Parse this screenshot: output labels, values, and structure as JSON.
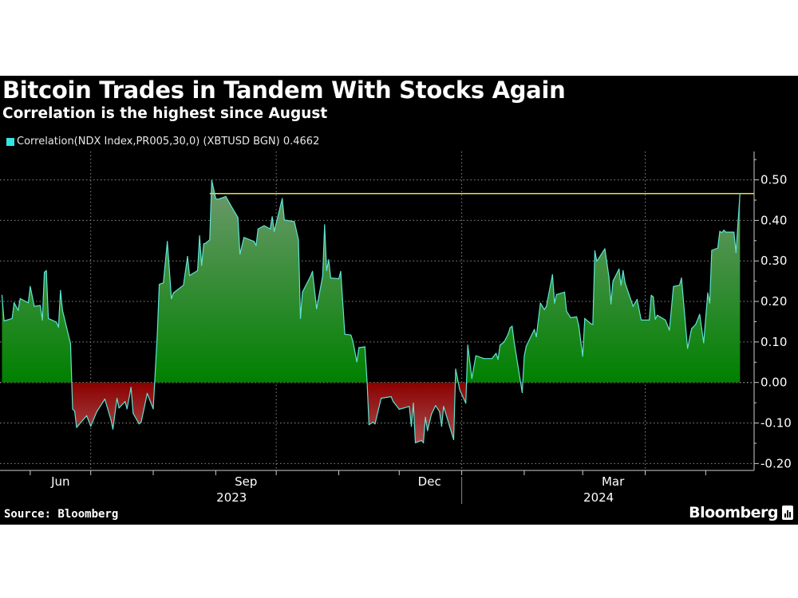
{
  "header": {
    "title": "Bitcoin Trades in Tandem With Stocks Again",
    "subtitle": "Correlation is the highest since August"
  },
  "footer": {
    "source": "Source: Bloomberg",
    "brand": "Bloomberg"
  },
  "colors": {
    "background": "#000000",
    "line": "#5fe3d3",
    "positive_fill": "#008a00",
    "negative_fill": "#8b0000",
    "reference_line": "#e6e04a",
    "legend_swatch": "#33e6e6"
  },
  "chart_data": {
    "type": "area",
    "title": "Bitcoin Trades in Tandem With Stocks Again",
    "subtitle": "Correlation is the highest since August",
    "legend_position": "top-left",
    "grid": true,
    "y_axis_side": "right",
    "ylim": [
      -0.217,
      0.57
    ],
    "xlim": [
      "2023-05-17",
      "2024-05-25"
    ],
    "y_ticks": [
      {
        "value": 0.5,
        "label": "0.50"
      },
      {
        "value": 0.4,
        "label": "0.40"
      },
      {
        "value": 0.3,
        "label": "0.30"
      },
      {
        "value": 0.2,
        "label": "0.20"
      },
      {
        "value": 0.1,
        "label": "0.10"
      },
      {
        "value": 0.0,
        "label": "0.00"
      },
      {
        "value": -0.1,
        "label": "-0.10"
      },
      {
        "value": -0.2,
        "label": "-0.20"
      }
    ],
    "x_tick_labels": [
      {
        "label": "Jun",
        "date": "2023-06-16"
      },
      {
        "label": "Sep",
        "date": "2023-09-16"
      },
      {
        "label": "Dec",
        "date": "2023-12-16"
      },
      {
        "label": "Mar",
        "date": "2024-03-16"
      }
    ],
    "year_labels": [
      {
        "label": "2023",
        "date": "2023-09-16"
      },
      {
        "label": "2024",
        "date": "2024-03-16"
      }
    ],
    "year_separator": "2024-01-01",
    "vertical_gridlines": [
      "2023-07-01",
      "2023-10-01",
      "2024-01-01",
      "2024-04-01"
    ],
    "reference_line": {
      "value": 0.4662,
      "from": "2023-08-29"
    },
    "series": [
      {
        "name": "Correlation(NDX Index,PR005,30,0) (XBTUSD BGN) 0.4662",
        "points": [
          [
            "2023-05-18",
            0.215
          ],
          [
            "2023-05-19",
            0.152
          ],
          [
            "2023-05-23",
            0.158
          ],
          [
            "2023-05-24",
            0.197
          ],
          [
            "2023-05-26",
            0.178
          ],
          [
            "2023-05-27",
            0.207
          ],
          [
            "2023-05-31",
            0.197
          ],
          [
            "2023-06-01",
            0.237
          ],
          [
            "2023-06-03",
            0.188
          ],
          [
            "2023-06-06",
            0.19
          ],
          [
            "2023-06-07",
            0.154
          ],
          [
            "2023-06-08",
            0.272
          ],
          [
            "2023-06-09",
            0.276
          ],
          [
            "2023-06-10",
            0.158
          ],
          [
            "2023-06-14",
            0.149
          ],
          [
            "2023-06-15",
            0.137
          ],
          [
            "2023-06-16",
            0.227
          ],
          [
            "2023-06-17",
            0.178
          ],
          [
            "2023-06-21",
            0.096
          ],
          [
            "2023-06-22",
            -0.066
          ],
          [
            "2023-06-23",
            -0.07
          ],
          [
            "2023-06-24",
            -0.111
          ],
          [
            "2023-06-29",
            -0.082
          ],
          [
            "2023-07-01",
            -0.108
          ],
          [
            "2023-07-04",
            -0.072
          ],
          [
            "2023-07-08",
            -0.041
          ],
          [
            "2023-07-11",
            -0.092
          ],
          [
            "2023-07-12",
            -0.115
          ],
          [
            "2023-07-14",
            -0.039
          ],
          [
            "2023-07-15",
            -0.063
          ],
          [
            "2023-07-18",
            -0.047
          ],
          [
            "2023-07-19",
            -0.065
          ],
          [
            "2023-07-21",
            -0.012
          ],
          [
            "2023-07-22",
            -0.076
          ],
          [
            "2023-07-25",
            -0.102
          ],
          [
            "2023-07-26",
            -0.098
          ],
          [
            "2023-07-29",
            -0.027
          ],
          [
            "2023-08-01",
            -0.065
          ],
          [
            "2023-08-03",
            0.119
          ],
          [
            "2023-08-04",
            0.242
          ],
          [
            "2023-08-06",
            0.246
          ],
          [
            "2023-08-08",
            0.348
          ],
          [
            "2023-08-10",
            0.207
          ],
          [
            "2023-08-11",
            0.221
          ],
          [
            "2023-08-16",
            0.24
          ],
          [
            "2023-08-18",
            0.311
          ],
          [
            "2023-08-19",
            0.264
          ],
          [
            "2023-08-23",
            0.276
          ],
          [
            "2023-08-24",
            0.362
          ],
          [
            "2023-08-25",
            0.289
          ],
          [
            "2023-08-26",
            0.342
          ],
          [
            "2023-08-27",
            0.344
          ],
          [
            "2023-08-29",
            0.352
          ],
          [
            "2023-08-30",
            0.499
          ],
          [
            "2023-09-01",
            0.454
          ],
          [
            "2023-09-02",
            0.452
          ],
          [
            "2023-09-06",
            0.459
          ],
          [
            "2023-09-09",
            0.432
          ],
          [
            "2023-09-12",
            0.407
          ],
          [
            "2023-09-13",
            0.317
          ],
          [
            "2023-09-15",
            0.358
          ],
          [
            "2023-09-20",
            0.348
          ],
          [
            "2023-09-21",
            0.338
          ],
          [
            "2023-09-22",
            0.379
          ],
          [
            "2023-09-25",
            0.387
          ],
          [
            "2023-09-28",
            0.379
          ],
          [
            "2023-09-29",
            0.409
          ],
          [
            "2023-09-30",
            0.373
          ],
          [
            "2023-10-04",
            0.454
          ],
          [
            "2023-10-05",
            0.401
          ],
          [
            "2023-10-10",
            0.397
          ],
          [
            "2023-10-12",
            0.352
          ],
          [
            "2023-10-13",
            0.158
          ],
          [
            "2023-10-14",
            0.223
          ],
          [
            "2023-10-18",
            0.262
          ],
          [
            "2023-10-19",
            0.274
          ],
          [
            "2023-10-21",
            0.182
          ],
          [
            "2023-10-24",
            0.262
          ],
          [
            "2023-10-25",
            0.389
          ],
          [
            "2023-10-26",
            0.276
          ],
          [
            "2023-10-27",
            0.303
          ],
          [
            "2023-10-28",
            0.258
          ],
          [
            "2023-11-01",
            0.256
          ],
          [
            "2023-11-02",
            0.274
          ],
          [
            "2023-11-04",
            0.119
          ],
          [
            "2023-11-07",
            0.117
          ],
          [
            "2023-11-08",
            0.102
          ],
          [
            "2023-11-10",
            0.051
          ],
          [
            "2023-11-11",
            0.086
          ],
          [
            "2023-11-14",
            0.088
          ],
          [
            "2023-11-15",
            0.006
          ],
          [
            "2023-11-16",
            -0.104
          ],
          [
            "2023-11-18",
            -0.098
          ],
          [
            "2023-11-19",
            -0.102
          ],
          [
            "2023-11-22",
            -0.039
          ],
          [
            "2023-11-27",
            -0.035
          ],
          [
            "2023-11-28",
            -0.047
          ],
          [
            "2023-12-01",
            -0.066
          ],
          [
            "2023-12-06",
            -0.059
          ],
          [
            "2023-12-07",
            -0.108
          ],
          [
            "2023-12-08",
            -0.051
          ],
          [
            "2023-12-09",
            -0.149
          ],
          [
            "2023-12-12",
            -0.143
          ],
          [
            "2023-12-13",
            -0.149
          ],
          [
            "2023-12-14",
            -0.086
          ],
          [
            "2023-12-15",
            -0.119
          ],
          [
            "2023-12-17",
            -0.078
          ],
          [
            "2023-12-19",
            -0.057
          ],
          [
            "2023-12-21",
            -0.072
          ],
          [
            "2023-12-22",
            -0.108
          ],
          [
            "2023-12-23",
            -0.059
          ],
          [
            "2023-12-28",
            -0.141
          ],
          [
            "2023-12-29",
            0.033
          ],
          [
            "2023-12-31",
            -0.018
          ],
          [
            "2024-01-03",
            -0.051
          ],
          [
            "2024-01-04",
            0.092
          ],
          [
            "2024-01-06",
            0.01
          ],
          [
            "2024-01-08",
            0.066
          ],
          [
            "2024-01-12",
            0.059
          ],
          [
            "2024-01-16",
            0.059
          ],
          [
            "2024-01-18",
            0.072
          ],
          [
            "2024-01-19",
            0.057
          ],
          [
            "2024-01-20",
            0.092
          ],
          [
            "2024-01-22",
            0.1
          ],
          [
            "2024-01-24",
            0.119
          ],
          [
            "2024-01-25",
            0.135
          ],
          [
            "2024-01-26",
            0.139
          ],
          [
            "2024-01-27",
            0.1
          ],
          [
            "2024-01-31",
            -0.025
          ],
          [
            "2024-02-01",
            0.066
          ],
          [
            "2024-02-02",
            0.09
          ],
          [
            "2024-02-06",
            0.131
          ],
          [
            "2024-02-07",
            0.113
          ],
          [
            "2024-02-08",
            0.154
          ],
          [
            "2024-02-09",
            0.196
          ],
          [
            "2024-02-11",
            0.18
          ],
          [
            "2024-02-12",
            0.188
          ],
          [
            "2024-02-15",
            0.266
          ],
          [
            "2024-02-16",
            0.196
          ],
          [
            "2024-02-17",
            0.217
          ],
          [
            "2024-02-21",
            0.223
          ],
          [
            "2024-02-22",
            0.176
          ],
          [
            "2024-02-24",
            0.16
          ],
          [
            "2024-02-27",
            0.162
          ],
          [
            "2024-02-28",
            0.141
          ],
          [
            "2024-03-01",
            0.065
          ],
          [
            "2024-03-02",
            0.158
          ],
          [
            "2024-03-05",
            0.145
          ],
          [
            "2024-03-06",
            0.143
          ],
          [
            "2024-03-07",
            0.325
          ],
          [
            "2024-03-08",
            0.299
          ],
          [
            "2024-03-12",
            0.33
          ],
          [
            "2024-03-14",
            0.26
          ],
          [
            "2024-03-15",
            0.194
          ],
          [
            "2024-03-16",
            0.25
          ],
          [
            "2024-03-19",
            0.28
          ],
          [
            "2024-03-20",
            0.24
          ],
          [
            "2024-03-21",
            0.276
          ],
          [
            "2024-03-22",
            0.246
          ],
          [
            "2024-03-24",
            0.217
          ],
          [
            "2024-03-26",
            0.188
          ],
          [
            "2024-03-27",
            0.197
          ],
          [
            "2024-03-28",
            0.205
          ],
          [
            "2024-03-30",
            0.154
          ],
          [
            "2024-04-03",
            0.154
          ],
          [
            "2024-04-04",
            0.215
          ],
          [
            "2024-04-05",
            0.211
          ],
          [
            "2024-04-06",
            0.156
          ],
          [
            "2024-04-07",
            0.166
          ],
          [
            "2024-04-11",
            0.154
          ],
          [
            "2024-04-13",
            0.129
          ],
          [
            "2024-04-15",
            0.237
          ],
          [
            "2024-04-18",
            0.24
          ],
          [
            "2024-04-19",
            0.258
          ],
          [
            "2024-04-22",
            0.084
          ],
          [
            "2024-04-24",
            0.133
          ],
          [
            "2024-04-26",
            0.143
          ],
          [
            "2024-04-28",
            0.168
          ],
          [
            "2024-04-29",
            0.133
          ],
          [
            "2024-04-30",
            0.098
          ],
          [
            "2024-05-02",
            0.221
          ],
          [
            "2024-05-03",
            0.196
          ],
          [
            "2024-05-04",
            0.326
          ],
          [
            "2024-05-07",
            0.332
          ],
          [
            "2024-05-08",
            0.373
          ],
          [
            "2024-05-09",
            0.37
          ],
          [
            "2024-05-10",
            0.376
          ],
          [
            "2024-05-11",
            0.371
          ],
          [
            "2024-05-15",
            0.371
          ],
          [
            "2024-05-16",
            0.321
          ],
          [
            "2024-05-18",
            0.4662
          ]
        ]
      }
    ]
  }
}
